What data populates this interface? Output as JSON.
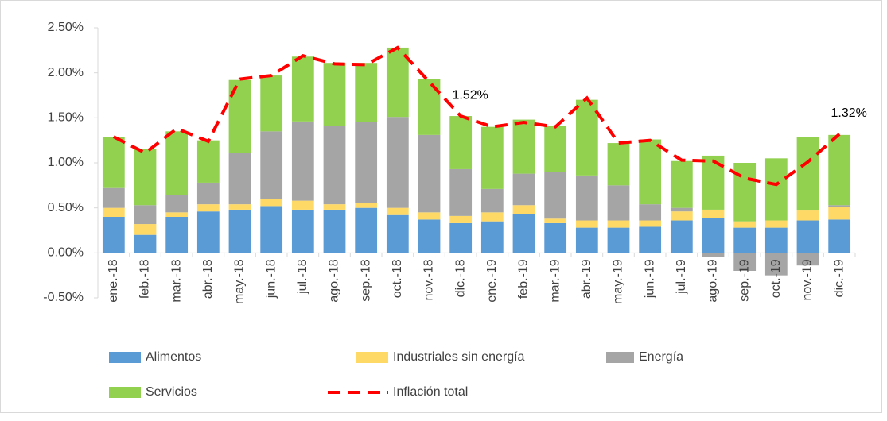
{
  "chart_data": {
    "type": "stacked_bar_line",
    "categories": [
      "ene.-18",
      "feb.-18",
      "mar.-18",
      "abr.-18",
      "may.-18",
      "jun.-18",
      "jul.-18",
      "ago.-18",
      "sep.-18",
      "oct.-18",
      "nov.-18",
      "dic.-18",
      "ene.-19",
      "feb.-19",
      "mar.-19",
      "abr.-19",
      "may.-19",
      "jun.-19",
      "jul.-19",
      "ago.-19",
      "sep.-19",
      "oct.-19",
      "nov.-19",
      "dic.-19"
    ],
    "series": [
      {
        "name": "Alimentos",
        "color": "#5b9bd5",
        "values": [
          0.4,
          0.2,
          0.4,
          0.46,
          0.48,
          0.52,
          0.48,
          0.48,
          0.5,
          0.42,
          0.37,
          0.33,
          0.35,
          0.43,
          0.33,
          0.28,
          0.28,
          0.29,
          0.36,
          0.39,
          0.28,
          0.28,
          0.36,
          0.37
        ]
      },
      {
        "name": "Industriales sin energía",
        "color": "#ffd966",
        "values": [
          0.1,
          0.12,
          0.05,
          0.08,
          0.06,
          0.08,
          0.1,
          0.06,
          0.05,
          0.08,
          0.08,
          0.08,
          0.1,
          0.1,
          0.05,
          0.08,
          0.08,
          0.07,
          0.1,
          0.09,
          0.07,
          0.08,
          0.11,
          0.14
        ]
      },
      {
        "name": "Energía",
        "color": "#a5a5a5",
        "values": [
          0.22,
          0.21,
          0.19,
          0.24,
          0.57,
          0.75,
          0.88,
          0.87,
          0.9,
          1.01,
          0.86,
          0.52,
          0.26,
          0.35,
          0.52,
          0.5,
          0.39,
          0.18,
          0.04,
          -0.05,
          -0.2,
          -0.25,
          -0.14,
          0.02
        ]
      },
      {
        "name": "Servicios",
        "color": "#92d050",
        "values": [
          0.57,
          0.62,
          0.71,
          0.47,
          0.81,
          0.62,
          0.72,
          0.7,
          0.66,
          0.77,
          0.62,
          0.59,
          0.69,
          0.6,
          0.51,
          0.84,
          0.47,
          0.72,
          0.52,
          0.6,
          0.65,
          0.69,
          0.82,
          0.78
        ]
      },
      {
        "name": "Inflación total",
        "type": "line",
        "color": "#ff0000",
        "values": [
          1.29,
          1.11,
          1.38,
          1.24,
          1.93,
          1.97,
          2.19,
          2.1,
          2.09,
          2.28,
          1.9,
          1.52,
          1.4,
          1.45,
          1.4,
          1.72,
          1.22,
          1.25,
          1.03,
          1.02,
          0.83,
          0.76,
          1.01,
          1.32
        ],
        "value_labels": [
          null,
          null,
          null,
          null,
          null,
          null,
          null,
          null,
          null,
          null,
          null,
          "1.52%",
          null,
          null,
          null,
          null,
          null,
          null,
          null,
          null,
          null,
          null,
          null,
          "1.32%"
        ]
      }
    ],
    "ylim": [
      -0.5,
      2.5
    ],
    "yticks": [
      {
        "value": -0.5,
        "label": "-0.50%"
      },
      {
        "value": 0,
        "label": "0.00%"
      },
      {
        "value": 0.5,
        "label": "0.50%"
      },
      {
        "value": 1,
        "label": "1.00%"
      },
      {
        "value": 1.5,
        "label": "1.50%"
      },
      {
        "value": 2,
        "label": "2.00%"
      },
      {
        "value": 2.5,
        "label": "2.50%"
      }
    ],
    "legend": "bottom"
  }
}
